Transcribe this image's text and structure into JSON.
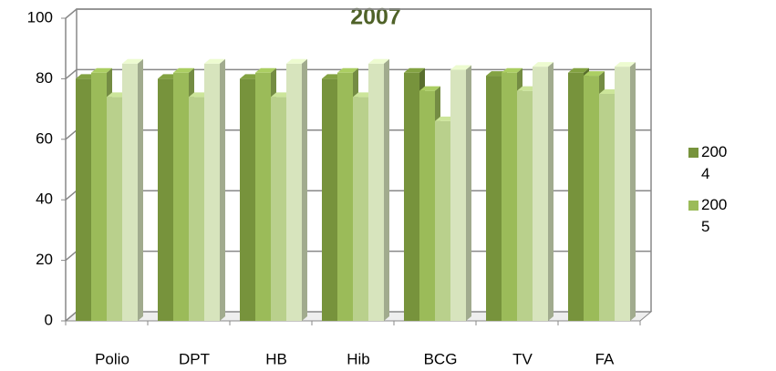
{
  "chart_data": {
    "type": "bar",
    "title": "2007",
    "categories": [
      "Polio",
      "DPT",
      "HB",
      "Hib",
      "BCG",
      "TV",
      "FA"
    ],
    "series": [
      {
        "name": "2004",
        "color": "#77933c",
        "values": [
          80,
          80,
          80,
          80,
          82,
          81,
          82
        ]
      },
      {
        "name": "2005",
        "color": "#9bbb59",
        "values": [
          82,
          82,
          82,
          82,
          76,
          82,
          81
        ]
      },
      {
        "color": "#b9d08c",
        "values": [
          74,
          74,
          74,
          74,
          66,
          76,
          75
        ]
      },
      {
        "color": "#d7e4bd",
        "values": [
          85,
          85,
          85,
          85,
          83,
          84,
          84
        ]
      }
    ],
    "ylim": [
      0,
      100
    ],
    "yticks": [
      0,
      20,
      40,
      60,
      80,
      100
    ],
    "grid": true
  }
}
